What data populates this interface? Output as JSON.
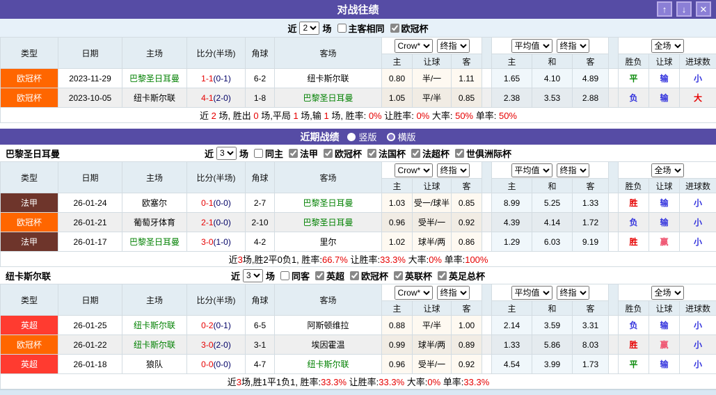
{
  "colors": {
    "accent_purple": "#564CA5",
    "league": {
      "欧冠杯": "#FF6600",
      "法甲": "#6E352B",
      "英超": "#FF3B30"
    },
    "result": {
      "red": "#E60000",
      "blue": "#3333DD",
      "green": "#0A8A0A",
      "pink": "#EF5571"
    },
    "team_green": "#008000",
    "score_red": "#E60000",
    "half_navy": "#000066"
  },
  "headers": {
    "left": [
      "类型",
      "日期",
      "主场",
      "比分(半场)",
      "角球",
      "客场"
    ],
    "select_groups": [
      [
        "Crow*",
        "终指"
      ],
      [
        "平均值",
        "终指"
      ],
      [
        "全场"
      ]
    ],
    "sub": [
      "主",
      "让球",
      "客",
      "主",
      "和",
      "客",
      "胜负",
      "让球",
      "进球数"
    ]
  },
  "section1": {
    "title": "对战往绩",
    "window_buttons": {
      "up": "↑",
      "down": "↓",
      "close": "✕"
    },
    "filter": {
      "prefix": "近",
      "games": "2",
      "suffix": "场",
      "checkboxes": [
        {
          "label": "主客相同",
          "checked": false
        },
        {
          "label": "欧冠杯",
          "checked": true
        }
      ]
    },
    "rows": [
      {
        "league": "欧冠杯",
        "date": "2023-11-29",
        "home": "巴黎圣日耳曼",
        "home_focus": true,
        "score": "1-1",
        "half": "(0-1)",
        "corner": "6-2",
        "away": "纽卡斯尔联",
        "away_focus": false,
        "crow": [
          "0.80",
          "半/一",
          "1.11"
        ],
        "avg": [
          "1.65",
          "4.10",
          "4.89"
        ],
        "results": [
          [
            "平",
            "green"
          ],
          [
            "输",
            "blue"
          ],
          [
            "小",
            "blue"
          ]
        ]
      },
      {
        "league": "欧冠杯",
        "date": "2023-10-05",
        "home": "纽卡斯尔联",
        "home_focus": false,
        "score": "4-1",
        "half": "(2-0)",
        "corner": "1-8",
        "away": "巴黎圣日耳曼",
        "away_focus": true,
        "crow": [
          "1.05",
          "平/半",
          "0.85"
        ],
        "avg": [
          "2.38",
          "3.53",
          "2.88"
        ],
        "results": [
          [
            "负",
            "blue"
          ],
          [
            "输",
            "blue"
          ],
          [
            "大",
            "red"
          ]
        ]
      }
    ],
    "summary": [
      [
        "近 ",
        0
      ],
      [
        "2",
        1
      ],
      [
        " 场, 胜出 ",
        0
      ],
      [
        "0",
        1
      ],
      [
        " 场,平局 ",
        0
      ],
      [
        "1",
        1
      ],
      [
        " 场,输 ",
        0
      ],
      [
        "1",
        1
      ],
      [
        " 场, 胜率: ",
        0
      ],
      [
        "0%",
        1
      ],
      [
        " 让胜率: ",
        0
      ],
      [
        "0%",
        1
      ],
      [
        " 大率: ",
        0
      ],
      [
        "50%",
        1
      ],
      [
        " 单率: ",
        0
      ],
      [
        "50%",
        1
      ]
    ]
  },
  "bar2": {
    "title": "近期战绩",
    "radios": [
      {
        "label": "竖版",
        "selected": true
      },
      {
        "label": "横版",
        "selected": false
      }
    ]
  },
  "psg": {
    "team": "巴黎圣日耳曼",
    "filter": {
      "prefix": "近",
      "games": "3",
      "suffix": "场",
      "checkboxes": [
        {
          "label": "同主",
          "checked": false
        },
        {
          "label": "法甲",
          "checked": true
        },
        {
          "label": "欧冠杯",
          "checked": true
        },
        {
          "label": "法国杯",
          "checked": true
        },
        {
          "label": "法超杯",
          "checked": true
        },
        {
          "label": "世俱洲际杯",
          "checked": true
        }
      ]
    },
    "rows": [
      {
        "league": "法甲",
        "date": "26-01-24",
        "home": "欧塞尔",
        "home_focus": false,
        "score": "0-1",
        "half": "(0-0)",
        "corner": "2-7",
        "away": "巴黎圣日耳曼",
        "away_focus": true,
        "crow": [
          "1.03",
          "受一/球半",
          "0.85"
        ],
        "avg": [
          "8.99",
          "5.25",
          "1.33"
        ],
        "results": [
          [
            "胜",
            "red"
          ],
          [
            "输",
            "blue"
          ],
          [
            "小",
            "blue"
          ]
        ]
      },
      {
        "league": "欧冠杯",
        "date": "26-01-21",
        "home": "葡萄牙体育",
        "home_focus": false,
        "score": "2-1",
        "half": "(0-0)",
        "corner": "2-10",
        "away": "巴黎圣日耳曼",
        "away_focus": true,
        "crow": [
          "0.96",
          "受半/一",
          "0.92"
        ],
        "avg": [
          "4.39",
          "4.14",
          "1.72"
        ],
        "results": [
          [
            "负",
            "blue"
          ],
          [
            "输",
            "blue"
          ],
          [
            "小",
            "blue"
          ]
        ]
      },
      {
        "league": "法甲",
        "date": "26-01-17",
        "home": "巴黎圣日耳曼",
        "home_focus": true,
        "score": "3-0",
        "half": "(1-0)",
        "corner": "4-2",
        "away": "里尔",
        "away_focus": false,
        "crow": [
          "1.02",
          "球半/两",
          "0.86"
        ],
        "avg": [
          "1.29",
          "6.03",
          "9.19"
        ],
        "results": [
          [
            "胜",
            "red"
          ],
          [
            "赢",
            "pink"
          ],
          [
            "小",
            "blue"
          ]
        ]
      }
    ],
    "summary": [
      [
        "近",
        0
      ],
      [
        "3",
        1
      ],
      [
        "场,胜2平0负1, 胜率:",
        0
      ],
      [
        "66.7%",
        1
      ],
      [
        " 让胜率:",
        0
      ],
      [
        "33.3%",
        1
      ],
      [
        " 大率:",
        0
      ],
      [
        "0%",
        1
      ],
      [
        " 单率:",
        0
      ],
      [
        "100%",
        1
      ]
    ]
  },
  "nufc": {
    "team": "纽卡斯尔联",
    "filter": {
      "prefix": "近",
      "games": "3",
      "suffix": "场",
      "checkboxes": [
        {
          "label": "同客",
          "checked": false
        },
        {
          "label": "英超",
          "checked": true
        },
        {
          "label": "欧冠杯",
          "checked": true
        },
        {
          "label": "英联杯",
          "checked": true
        },
        {
          "label": "英足总杯",
          "checked": true
        }
      ]
    },
    "rows": [
      {
        "league": "英超",
        "date": "26-01-25",
        "home": "纽卡斯尔联",
        "home_focus": true,
        "score": "0-2",
        "half": "(0-1)",
        "corner": "6-5",
        "away": "阿斯顿维拉",
        "away_focus": false,
        "crow": [
          "0.88",
          "平/半",
          "1.00"
        ],
        "avg": [
          "2.14",
          "3.59",
          "3.31"
        ],
        "results": [
          [
            "负",
            "blue"
          ],
          [
            "输",
            "blue"
          ],
          [
            "小",
            "blue"
          ]
        ]
      },
      {
        "league": "欧冠杯",
        "date": "26-01-22",
        "home": "纽卡斯尔联",
        "home_focus": true,
        "score": "3-0",
        "half": "(2-0)",
        "corner": "3-1",
        "away": "埃因霍温",
        "away_focus": false,
        "crow": [
          "0.99",
          "球半/两",
          "0.89"
        ],
        "avg": [
          "1.33",
          "5.86",
          "8.03"
        ],
        "results": [
          [
            "胜",
            "red"
          ],
          [
            "赢",
            "pink"
          ],
          [
            "小",
            "blue"
          ]
        ]
      },
      {
        "league": "英超",
        "date": "26-01-18",
        "home": "狼队",
        "home_focus": false,
        "score": "0-0",
        "half": "(0-0)",
        "corner": "4-7",
        "away": "纽卡斯尔联",
        "away_focus": true,
        "crow": [
          "0.96",
          "受半/一",
          "0.92"
        ],
        "avg": [
          "4.54",
          "3.99",
          "1.73"
        ],
        "results": [
          [
            "平",
            "green"
          ],
          [
            "输",
            "blue"
          ],
          [
            "小",
            "blue"
          ]
        ]
      }
    ],
    "summary": [
      [
        "近",
        0
      ],
      [
        "3",
        1
      ],
      [
        "场,胜1平1负1, 胜率:",
        0
      ],
      [
        "33.3%",
        1
      ],
      [
        " 让胜率:",
        0
      ],
      [
        "33.3%",
        1
      ],
      [
        " 大率:",
        0
      ],
      [
        "0%",
        1
      ],
      [
        " 单率:",
        0
      ],
      [
        "33.3%",
        1
      ]
    ]
  }
}
